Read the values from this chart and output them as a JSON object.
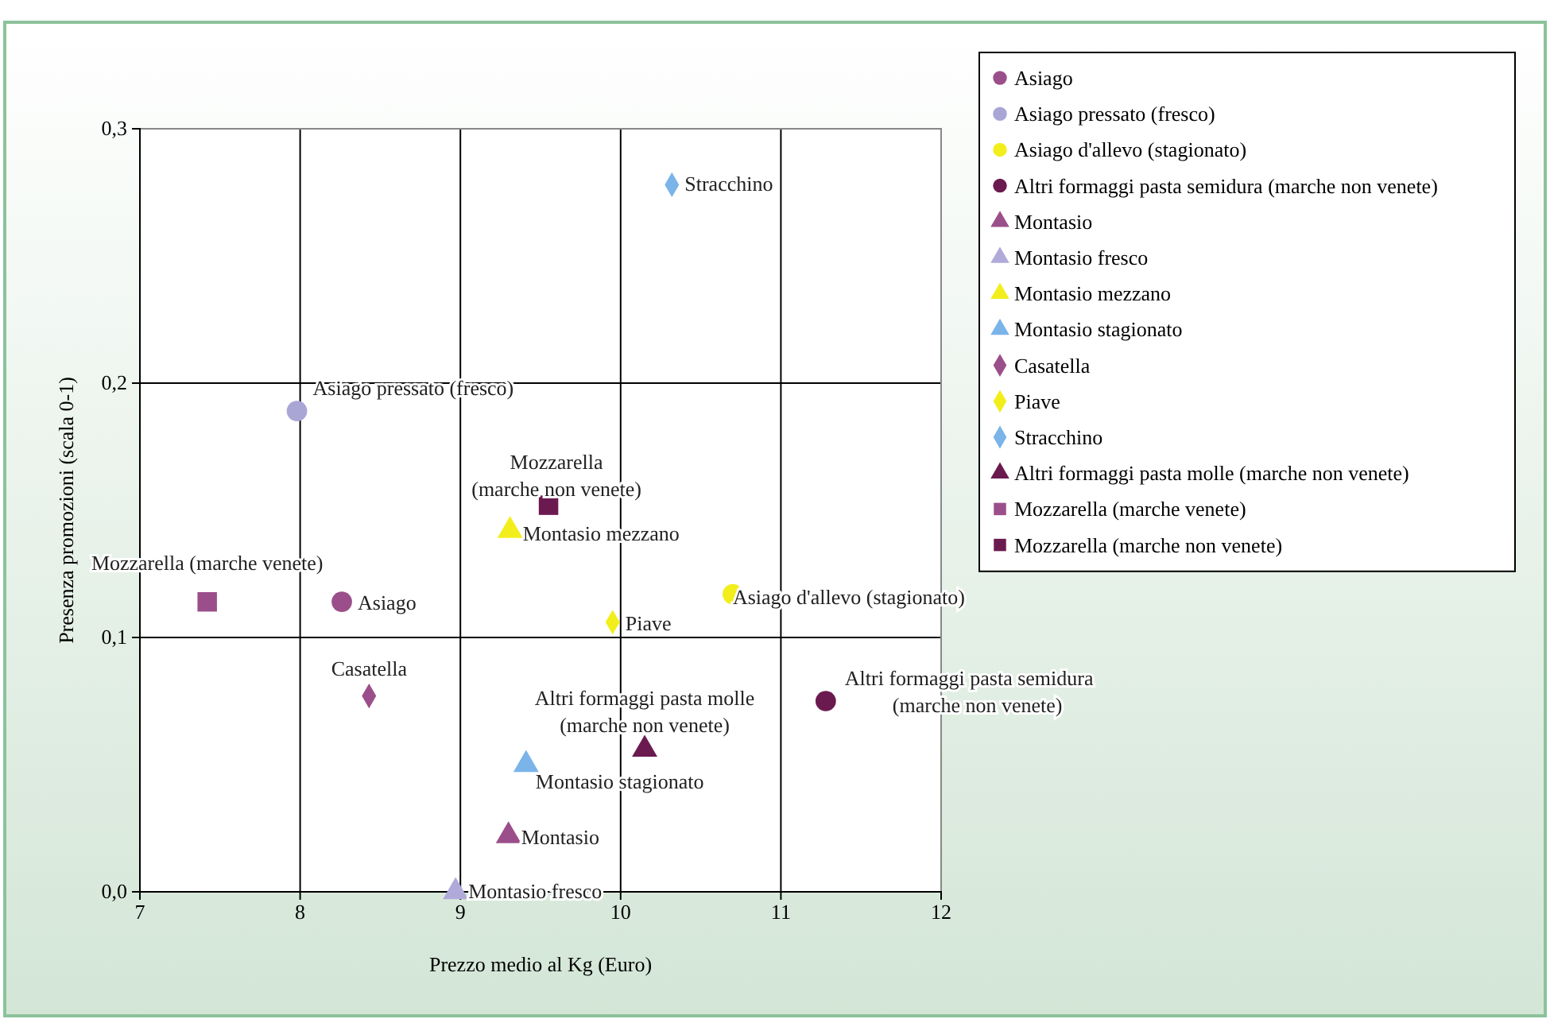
{
  "chart_data": {
    "type": "scatter",
    "xlabel": "Prezzo medio al Kg (Euro)",
    "ylabel": "Presenza promozioni (scala 0-1)",
    "xlim": [
      7,
      12
    ],
    "ylim": [
      0,
      0.3
    ],
    "xticks": [
      7,
      8,
      9,
      10,
      11,
      12
    ],
    "yticks": [
      {
        "value": 0,
        "label": "0,0"
      },
      {
        "value": 0.1,
        "label": "0,1"
      },
      {
        "value": 0.2,
        "label": "0,2"
      },
      {
        "value": 0.3,
        "label": "0,3"
      }
    ],
    "grid": true,
    "legend": "right",
    "series": [
      {
        "name": "Asiago",
        "color": "#9b4f8a",
        "marker": "circle",
        "x": [
          8.26
        ],
        "values": [
          0.114
        ]
      },
      {
        "name": "Asiago pressato (fresco)",
        "color": "#a9a6d6",
        "marker": "circle",
        "x": [
          7.98
        ],
        "values": [
          0.189
        ]
      },
      {
        "name": "Asiago d'allevo (stagionato)",
        "color": "#f2ee1c",
        "marker": "circle",
        "x": [
          10.7
        ],
        "values": [
          0.117
        ]
      },
      {
        "name": "Altri formaggi pasta semidura (marche non venete)",
        "color": "#6b1a50",
        "marker": "circle",
        "x": [
          11.28
        ],
        "values": [
          0.075
        ]
      },
      {
        "name": "Montasio",
        "color": "#9b4f8a",
        "marker": "triangle",
        "x": [
          9.3
        ],
        "values": [
          0.022
        ]
      },
      {
        "name": "Montasio fresco",
        "color": "#b0aadb",
        "marker": "triangle",
        "x": [
          8.97
        ],
        "values": [
          0.0
        ]
      },
      {
        "name": "Montasio mezzano",
        "color": "#f2ee1c",
        "marker": "triangle",
        "x": [
          9.31
        ],
        "values": [
          0.142
        ]
      },
      {
        "name": "Montasio stagionato",
        "color": "#7ab4e8",
        "marker": "triangle",
        "x": [
          9.41
        ],
        "values": [
          0.05
        ]
      },
      {
        "name": "Casatella",
        "color": "#9b4f8a",
        "marker": "diamond",
        "x": [
          8.43
        ],
        "values": [
          0.077
        ]
      },
      {
        "name": "Piave",
        "color": "#f2ee1c",
        "marker": "diamond",
        "x": [
          9.95
        ],
        "values": [
          0.106
        ]
      },
      {
        "name": "Stracchino",
        "color": "#7ab4e8",
        "marker": "diamond",
        "x": [
          10.32
        ],
        "values": [
          0.278
        ]
      },
      {
        "name": "Altri formaggi pasta molle (marche non venete)",
        "color": "#6b1a50",
        "marker": "triangle",
        "x": [
          10.15
        ],
        "values": [
          0.056
        ]
      },
      {
        "name": "Mozzarella (marche venete)",
        "color": "#9b4f8a",
        "marker": "square",
        "x": [
          7.42
        ],
        "values": [
          0.114
        ]
      },
      {
        "name": "Mozzarella (marche non venete)",
        "color": "#6b1a50",
        "marker": "square",
        "x": [
          9.55
        ],
        "values": [
          0.152
        ]
      }
    ]
  }
}
